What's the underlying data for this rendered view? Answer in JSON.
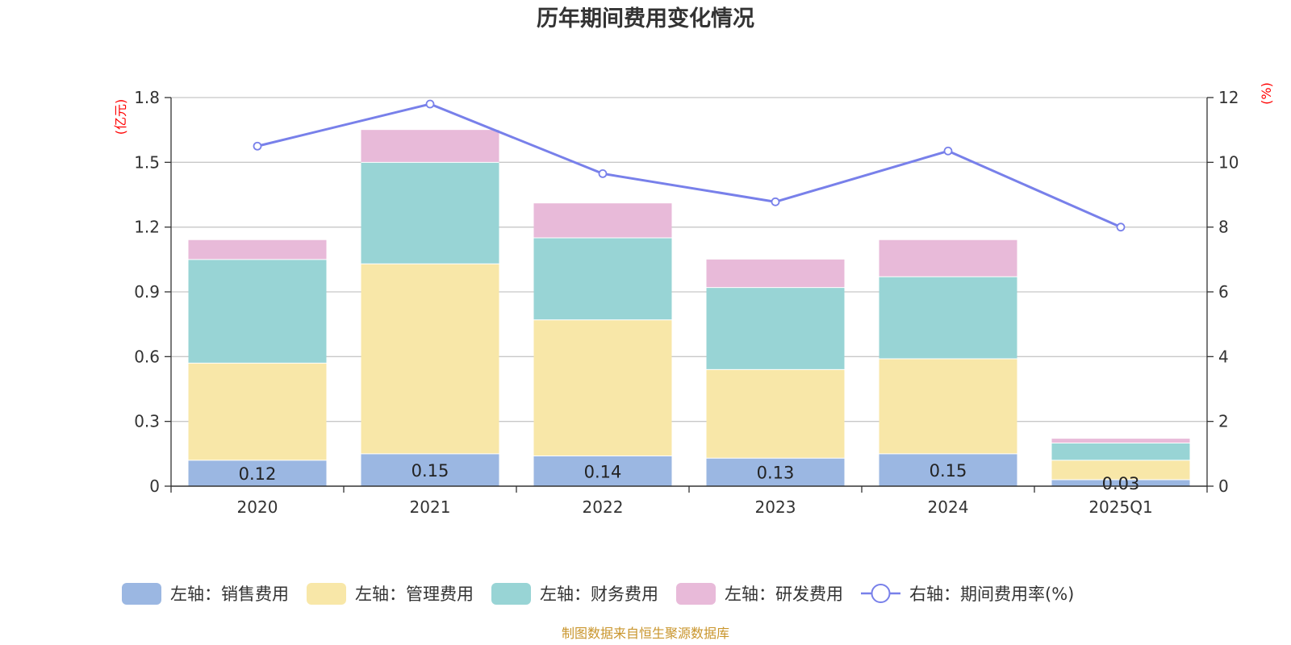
{
  "chart_data": {
    "type": "bar",
    "title": "历年期间费用变化情况",
    "categories": [
      "2020",
      "2021",
      "2022",
      "2023",
      "2024",
      "2025Q1"
    ],
    "y_left": {
      "unit": "(亿元)",
      "ylim": [
        0,
        1.8
      ],
      "ticks": [
        "0",
        "0.3",
        "0.6",
        "0.9",
        "1.2",
        "1.5",
        "1.8"
      ]
    },
    "y_right": {
      "unit": "(%)",
      "ylim": [
        0,
        12
      ],
      "ticks": [
        "0",
        "2",
        "4",
        "6",
        "8",
        "10",
        "12"
      ]
    },
    "series": [
      {
        "name": "左轴：销售费用",
        "axis": "left",
        "kind": "bar",
        "color": "#9bb7e2",
        "values": [
          0.12,
          0.15,
          0.14,
          0.13,
          0.15,
          0.03
        ],
        "labels": [
          "0.12",
          "0.15",
          "0.14",
          "0.13",
          "0.15",
          "0.03"
        ]
      },
      {
        "name": "左轴：管理费用",
        "axis": "left",
        "kind": "bar",
        "color": "#f8e7a8",
        "values": [
          0.45,
          0.88,
          0.63,
          0.41,
          0.44,
          0.09
        ]
      },
      {
        "name": "左轴：财务费用",
        "axis": "left",
        "kind": "bar",
        "color": "#98d4d5",
        "values": [
          0.48,
          0.47,
          0.38,
          0.38,
          0.38,
          0.08
        ]
      },
      {
        "name": "左轴：研发费用",
        "axis": "left",
        "kind": "bar",
        "color": "#e8bad9",
        "values": [
          0.09,
          0.15,
          0.16,
          0.13,
          0.17,
          0.02
        ]
      },
      {
        "name": "右轴：期间费用率(%)",
        "axis": "right",
        "kind": "line",
        "color": "#7880ea",
        "values": [
          10.5,
          11.8,
          9.65,
          8.78,
          10.35,
          8.0
        ]
      }
    ],
    "legend_position": "bottom",
    "grid": true
  },
  "footer": {
    "source": "制图数据来自恒生聚源数据库"
  }
}
